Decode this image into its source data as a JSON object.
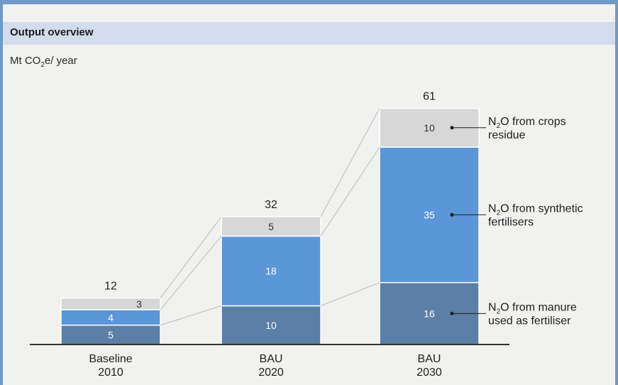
{
  "panel": {
    "title": "Output overview",
    "unit_prefix": "Mt CO",
    "unit_sub": "2",
    "unit_suffix": "e/ year"
  },
  "chart_data": {
    "type": "bar",
    "stacked": true,
    "title": "Output overview",
    "ylabel": "Mt CO2e/ year",
    "categories": [
      "Baseline\n2010",
      "BAU\n2020",
      "BAU\n2030"
    ],
    "totals": [
      12,
      32,
      61
    ],
    "ylim": [
      0,
      61
    ],
    "series": [
      {
        "name": "N2O from manure used as fertiliser",
        "values": [
          5,
          10,
          16
        ],
        "color": "#5b7fa6"
      },
      {
        "name": "N2O from synthetic fertilisers",
        "values": [
          4,
          18,
          35
        ],
        "color": "#5b97d8"
      },
      {
        "name": "N2O from crops residue",
        "values": [
          3,
          5,
          10
        ],
        "color": "#d7d7d7"
      }
    ],
    "legend": "right, labels connected to bars with leader lines",
    "grid": false
  },
  "colors": {
    "frame": "#6e99c9",
    "header": "#d2dceb",
    "background": "#f1f1ef",
    "axis": "#333333",
    "connector": "#b0b0b0"
  }
}
